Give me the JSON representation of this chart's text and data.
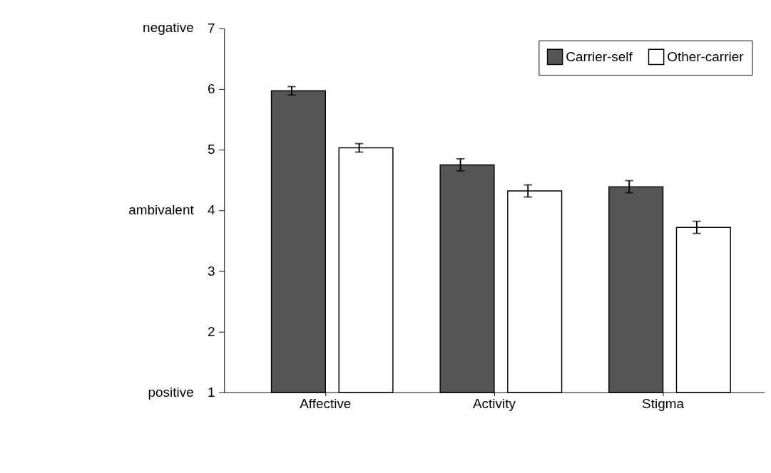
{
  "chart_data": {
    "type": "bar",
    "categories": [
      "Affective",
      "Activity",
      "Stigma"
    ],
    "series": [
      {
        "name": "Carrier-self",
        "color": "#555555",
        "values": [
          5.97,
          4.75,
          4.39
        ],
        "errors": [
          0.07,
          0.1,
          0.1
        ]
      },
      {
        "name": "Other-carrier",
        "color": "#ffffff",
        "values": [
          5.03,
          4.32,
          3.72
        ],
        "errors": [
          0.07,
          0.1,
          0.1
        ]
      }
    ],
    "ylim": [
      1,
      7
    ],
    "yticks": [
      1,
      2,
      3,
      4,
      5,
      6,
      7
    ],
    "annotations": [
      "negative",
      "ambivalent",
      "positive"
    ],
    "legend": "top right",
    "grid": false
  }
}
